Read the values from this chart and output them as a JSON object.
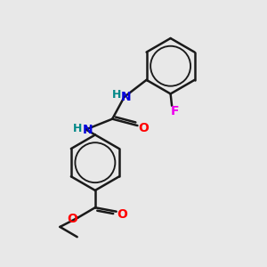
{
  "background_color": "#e8e8e8",
  "bond_color": "#1a1a1a",
  "bond_width": 1.8,
  "atom_colors": {
    "N": "#0000dd",
    "O": "#ff0000",
    "F": "#ee00ee",
    "H": "#008888",
    "C": "#1a1a1a"
  },
  "font_size_atom": 10,
  "font_size_H": 9,
  "xlim": [
    0,
    10
  ],
  "ylim": [
    0,
    10
  ],
  "figsize": [
    3.0,
    3.0
  ],
  "dpi": 100
}
